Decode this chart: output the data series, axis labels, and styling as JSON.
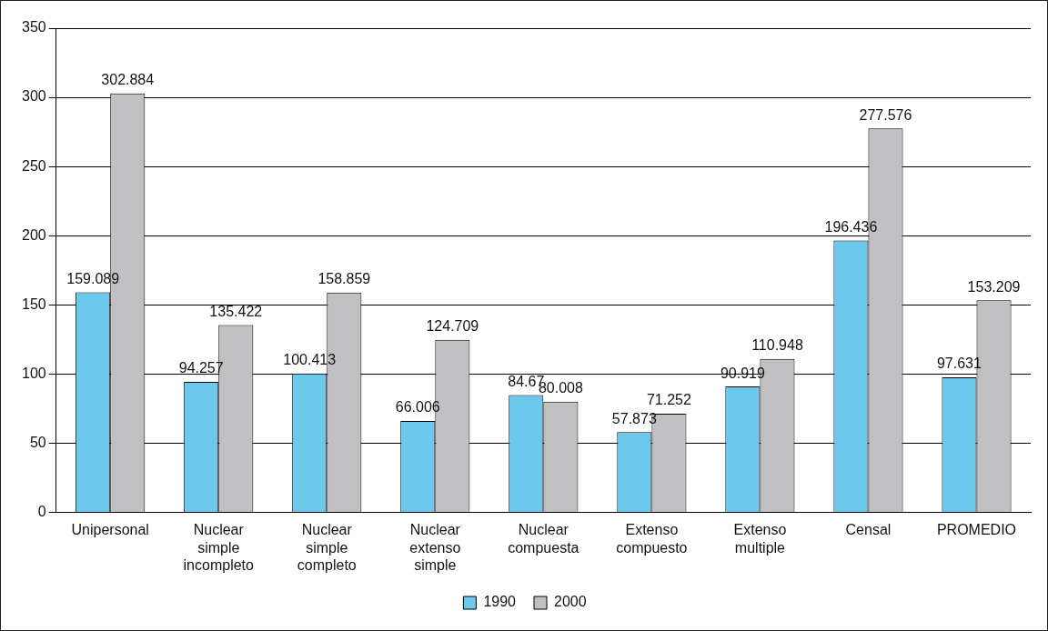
{
  "chart_data": {
    "type": "bar",
    "categories": [
      "Unipersonal",
      "Nuclear simple incompleto",
      "Nuclear simple completo",
      "Nuclear extenso simple",
      "Nuclear compuesta",
      "Extenso compuesto",
      "Extenso multiple",
      "Censal",
      "PROMEDIO"
    ],
    "series": [
      {
        "name": "1990",
        "color": "#6cc9ec",
        "values": [
          159.089,
          94.257,
          100.413,
          66.006,
          84.67,
          57.873,
          90.919,
          196.436,
          97.631
        ]
      },
      {
        "name": "2000",
        "color": "#c0c0c2",
        "values": [
          302.884,
          135.422,
          158.859,
          124.709,
          80.008,
          71.252,
          110.948,
          277.576,
          153.209
        ]
      }
    ],
    "ylim": [
      0,
      350
    ],
    "yticks": [
      0,
      50,
      100,
      150,
      200,
      250,
      300,
      350
    ],
    "grid": "y",
    "legend": "bottom",
    "data_labels": true
  }
}
